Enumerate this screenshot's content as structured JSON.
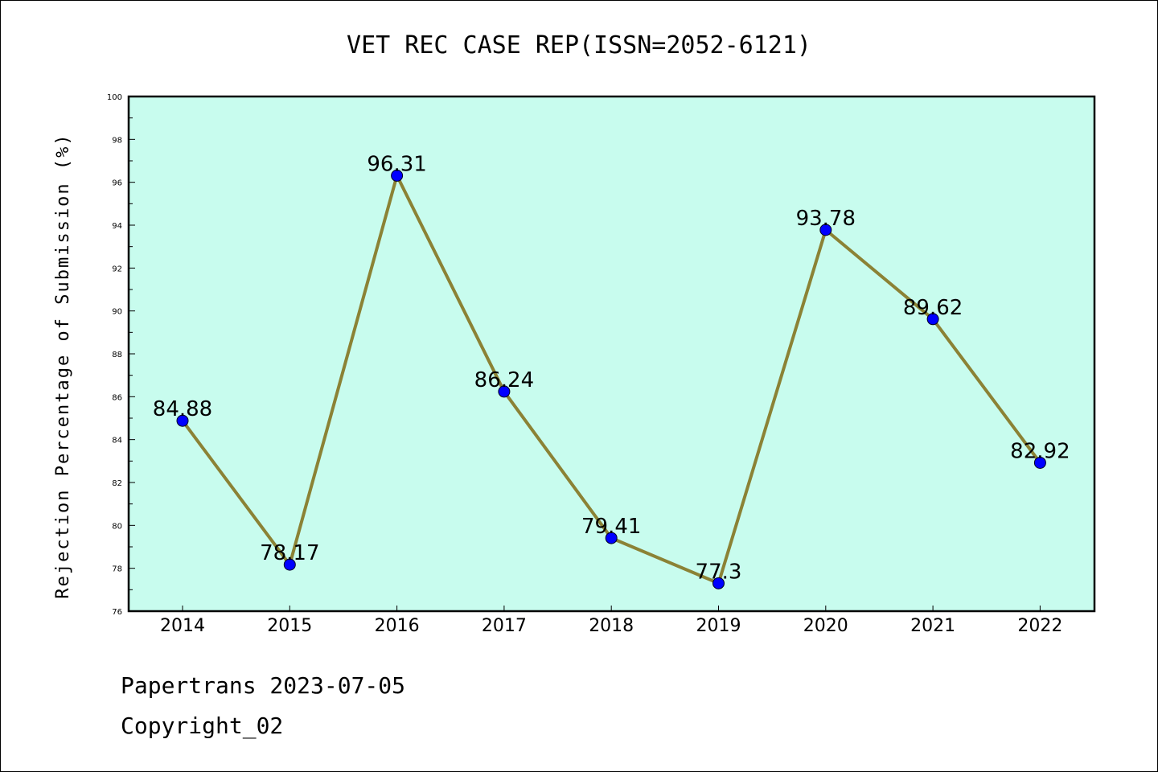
{
  "chart_data": {
    "type": "line",
    "title": "VET REC CASE REP(ISSN=2052-6121)",
    "ylabel": "Rejection Percentage of Submission (%)",
    "xlabel": "",
    "categories": [
      "2014",
      "2015",
      "2016",
      "2017",
      "2018",
      "2019",
      "2020",
      "2021",
      "2022"
    ],
    "values": [
      84.88,
      78.17,
      96.31,
      86.24,
      79.41,
      77.3,
      93.78,
      89.62,
      82.92
    ],
    "data_labels": [
      "84.88",
      "78.17",
      "96.31",
      "86.24",
      "79.41",
      "77.3",
      "93.78",
      "89.62",
      "82.92"
    ],
    "ylim": [
      76,
      100
    ],
    "yticks": [
      76,
      78,
      80,
      82,
      84,
      86,
      88,
      90,
      92,
      94,
      96,
      98,
      100
    ],
    "grid": false,
    "colors": {
      "plot_background": "#c8fcee",
      "line": "#8b8235",
      "marker": "#0000ff",
      "axes": "#000000"
    }
  },
  "footer": {
    "line1": "Papertrans 2023-07-05",
    "line2": "Copyright_02"
  }
}
